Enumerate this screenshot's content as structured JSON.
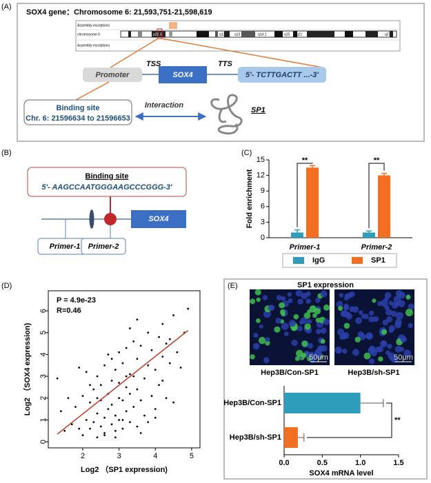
{
  "panel_labels": [
    "(A)",
    "(B)",
    "(C)",
    "(D)",
    "(E)"
  ],
  "panel_a": {
    "title": "SOX4 gene：Chromosome 6: 21,593,751-21,598,619",
    "ideogram": {
      "top_label": "Assembly exceptions",
      "chromosome": "chromosome 6",
      "bottom_label": "Assembly exceptions",
      "bands": [
        "p22.3",
        "q12",
        "q13",
        "q14.1",
        "q15",
        "q21",
        "q27"
      ]
    },
    "promoter": "Promoter",
    "tss": "TSS",
    "gene": "SOX4",
    "tts": "TTS",
    "sequence": "5'- TCTTGACTT ...-3'",
    "binding_site": {
      "title": "Binding site",
      "location": "Chr. 6: 21596634 to 21596653"
    },
    "interaction": "Interaction",
    "protein": "SP1"
  },
  "panel_b": {
    "binding_site": {
      "title": "Binding site",
      "sequence": "5'- AAGCCAATGGGAAGCCCGGG-3'"
    },
    "gene": "SOX4",
    "primers": [
      "Primer-1",
      "Primer-2"
    ]
  },
  "panel_e": {
    "title": "SP1 expression",
    "images": [
      {
        "caption": "Hep3B/Con-SP1",
        "scale": "50μm"
      },
      {
        "caption": "Hep3B/sh-SP1",
        "scale": "50μm"
      }
    ]
  },
  "chart_data": [
    {
      "type": "bar",
      "ylabel": "Fold enrichment",
      "categories": [
        "Primer-1",
        "Primer-2"
      ],
      "series": [
        {
          "name": "IgG",
          "color": "#2e9dbb",
          "values": [
            1.0,
            1.0
          ],
          "errors": [
            0.5,
            0.3
          ]
        },
        {
          "name": "SP1",
          "color": "#f26f21",
          "values": [
            13.5,
            12.0
          ],
          "errors": [
            0.4,
            0.4
          ]
        }
      ],
      "ylim": [
        0,
        15
      ],
      "yticks": [
        0,
        3,
        6,
        9,
        12,
        15
      ],
      "significance": [
        "**",
        "**"
      ],
      "legend": "bottom"
    },
    {
      "type": "scatter",
      "xlabel": "Log2 （SP1 expression)",
      "ylabel": "Log2 （SOX4 expression)",
      "annotations": [
        "P = 4.9e-23",
        "R=0.46"
      ],
      "color": "#000000",
      "x": [
        1.3,
        1.4,
        1.5,
        1.6,
        1.7,
        1.8,
        1.9,
        2.0,
        2.0,
        2.1,
        2.1,
        2.2,
        2.2,
        2.3,
        2.3,
        2.4,
        2.4,
        2.4,
        2.5,
        2.5,
        2.5,
        2.6,
        2.6,
        2.6,
        2.7,
        2.7,
        2.7,
        2.8,
        2.8,
        2.8,
        2.9,
        2.9,
        2.9,
        3.0,
        3.0,
        3.0,
        3.0,
        3.1,
        3.1,
        3.1,
        3.2,
        3.2,
        3.2,
        3.3,
        3.3,
        3.3,
        3.4,
        3.4,
        3.4,
        3.5,
        3.5,
        3.5,
        3.6,
        3.6,
        3.7,
        3.7,
        3.8,
        3.8,
        3.9,
        3.9,
        4.0,
        4.0,
        4.1,
        4.1,
        4.2,
        4.2,
        4.3,
        4.3,
        4.4,
        4.5,
        4.5,
        4.6,
        4.7,
        4.8,
        4.9,
        1.9,
        2.2,
        2.6,
        2.8,
        3.1,
        3.3,
        3.6,
        4.0,
        4.4,
        2.4,
        2.9,
        3.2,
        3.5,
        3.8,
        4.2
      ],
      "y": [
        2.9,
        1.4,
        0.5,
        2.0,
        0.8,
        1.6,
        3.4,
        0.3,
        2.1,
        1.0,
        3.2,
        0.6,
        1.8,
        2.4,
        0.9,
        1.3,
        3.0,
        0.2,
        1.9,
        0.7,
        2.6,
        1.1,
        3.5,
        0.4,
        2.2,
        1.5,
        4.0,
        0.8,
        2.8,
        1.7,
        1.2,
        3.3,
        0.5,
        2.0,
        4.1,
        1.0,
        2.7,
        0.6,
        3.6,
        1.9,
        1.4,
        4.3,
        2.5,
        0.9,
        3.1,
        2.2,
        1.6,
        4.6,
        3.0,
        0.7,
        3.8,
        2.4,
        1.9,
        4.4,
        2.9,
        1.2,
        3.5,
        5.0,
        2.1,
        4.2,
        3.3,
        1.5,
        4.8,
        2.6,
        3.9,
        5.4,
        2.0,
        4.5,
        3.6,
        5.8,
        1.8,
        4.1,
        3.4,
        5.0,
        6.1,
        0.6,
        2.6,
        0.3,
        3.8,
        1.0,
        5.2,
        0.4,
        1.1,
        4.7,
        2.0,
        0.2,
        3.0,
        5.6,
        0.9,
        2.8
      ],
      "fit": {
        "x": [
          1.3,
          4.9
        ],
        "y": [
          0.35,
          5.1
        ],
        "color": "#c0392b"
      },
      "xlim": [
        1.05,
        5.23
      ],
      "xticks": [
        2,
        3,
        4,
        5
      ],
      "ylim": [
        -0.28,
        6.92
      ],
      "yticks": [
        0,
        1,
        2,
        3,
        4,
        5,
        6
      ]
    },
    {
      "type": "hbar",
      "xlabel": "SOX4 mRNA level",
      "categories": [
        "Hep3B/Con-SP1",
        "Hep3B/sh-SP1"
      ],
      "values": [
        1.0,
        0.18
      ],
      "errors": [
        0.3,
        0.08
      ],
      "colors": [
        "#2e9dbb",
        "#f26f21"
      ],
      "significance": "**",
      "xlim": [
        0,
        1.5
      ],
      "xticks": [
        {
          "value": 0,
          "label": "0.0"
        },
        {
          "value": 0.5,
          "label": "0.5"
        },
        {
          "value": 1,
          "label": "1.0"
        },
        1.5
      ]
    }
  ]
}
